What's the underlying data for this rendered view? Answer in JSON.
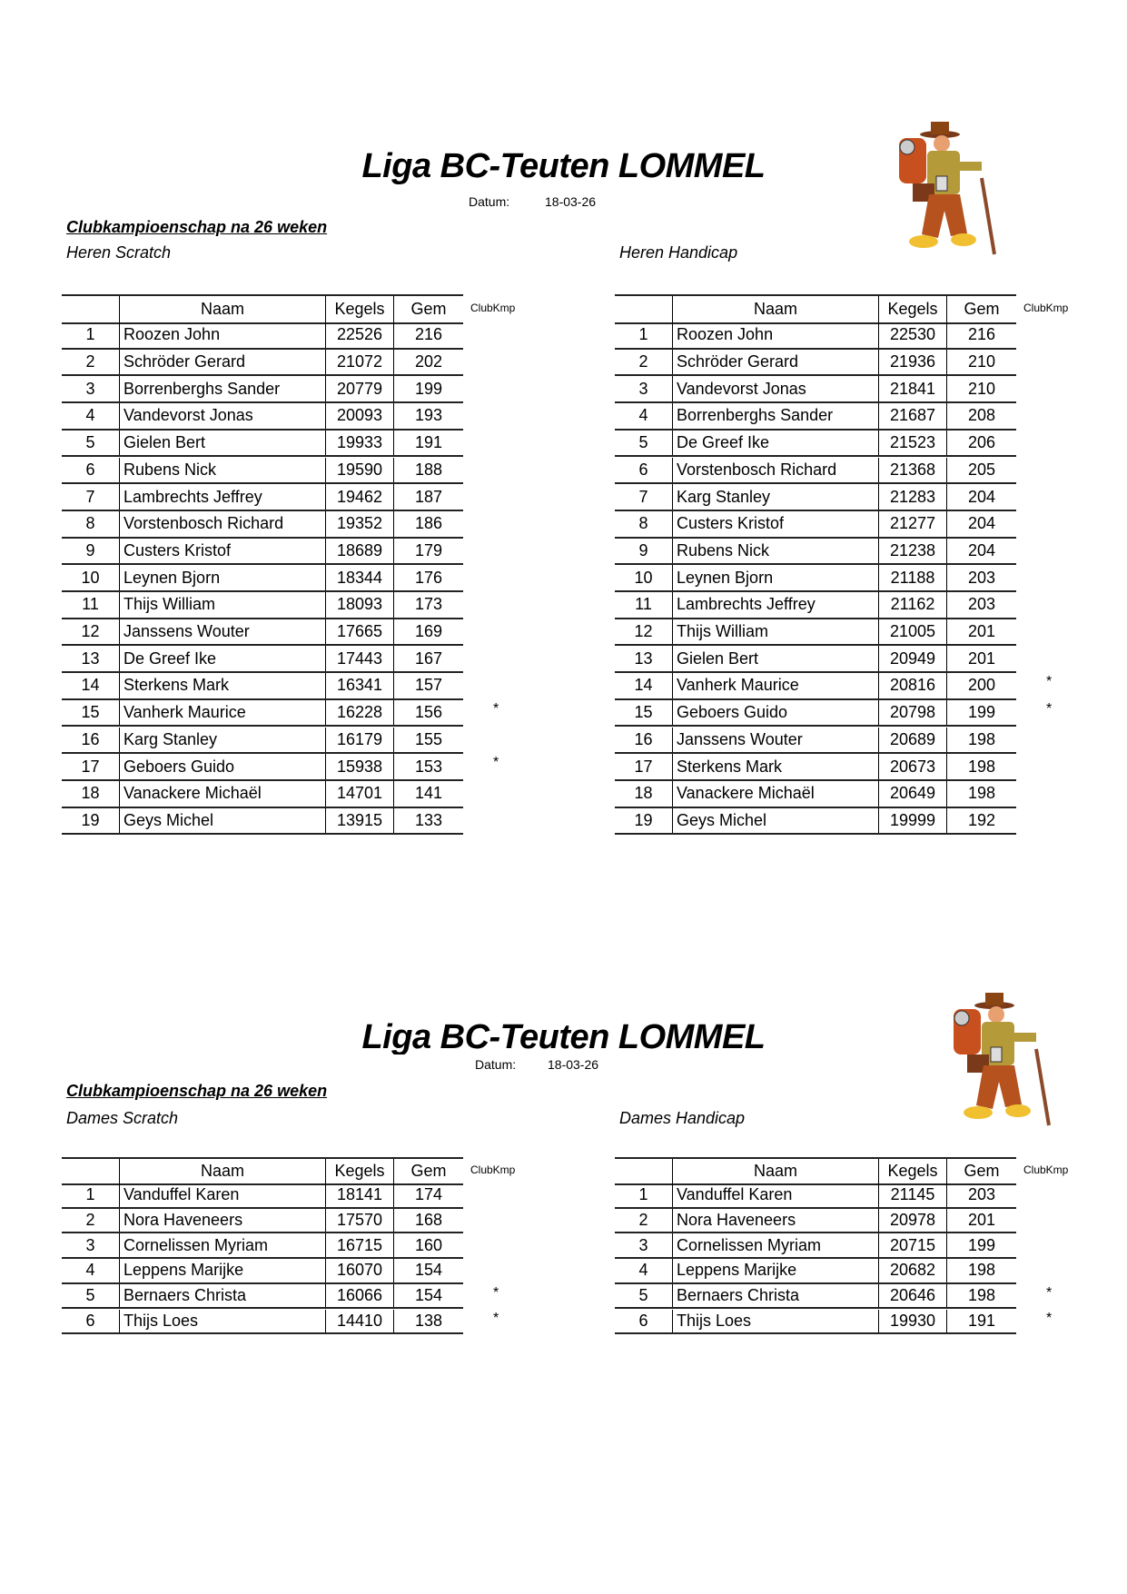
{
  "sections": [
    {
      "title": "Liga BC-Teuten LOMMEL",
      "datum_label": "Datum:",
      "datum_value": "18-03-26",
      "subtitle": "Clubkampioenschap na 26 weken",
      "columns": {
        "naam": "Naam",
        "kegels": "Kegels",
        "gem": "Gem",
        "clubkmp": "ClubKmp"
      },
      "tables": [
        {
          "label": "Heren Scratch",
          "rows": [
            [
              "1",
              "Roozen John",
              "22526",
              "216",
              ""
            ],
            [
              "2",
              "Schröder Gerard",
              "21072",
              "202",
              ""
            ],
            [
              "3",
              "Borrenberghs Sander",
              "20779",
              "199",
              ""
            ],
            [
              "4",
              "Vandevorst Jonas",
              "20093",
              "193",
              ""
            ],
            [
              "5",
              "Gielen Bert",
              "19933",
              "191",
              ""
            ],
            [
              "6",
              "Rubens Nick",
              "19590",
              "188",
              ""
            ],
            [
              "7",
              "Lambrechts Jeffrey",
              "19462",
              "187",
              ""
            ],
            [
              "8",
              "Vorstenbosch Richard",
              "19352",
              "186",
              ""
            ],
            [
              "9",
              "Custers Kristof",
              "18689",
              "179",
              ""
            ],
            [
              "10",
              "Leynen Bjorn",
              "18344",
              "176",
              ""
            ],
            [
              "11",
              "Thijs William",
              "18093",
              "173",
              ""
            ],
            [
              "12",
              "Janssens Wouter",
              "17665",
              "169",
              ""
            ],
            [
              "13",
              "De Greef Ike",
              "17443",
              "167",
              ""
            ],
            [
              "14",
              "Sterkens Mark",
              "16341",
              "157",
              ""
            ],
            [
              "15",
              "Vanherk Maurice",
              "16228",
              "156",
              "*"
            ],
            [
              "16",
              "Karg Stanley",
              "16179",
              "155",
              ""
            ],
            [
              "17",
              "Geboers Guido",
              "15938",
              "153",
              "*"
            ],
            [
              "18",
              "Vanackere Michaël",
              "14701",
              "141",
              ""
            ],
            [
              "19",
              "Geys Michel",
              "13915",
              "133",
              ""
            ]
          ]
        },
        {
          "label": "Heren Handicap",
          "rows": [
            [
              "1",
              "Roozen John",
              "22530",
              "216",
              ""
            ],
            [
              "2",
              "Schröder Gerard",
              "21936",
              "210",
              ""
            ],
            [
              "3",
              "Vandevorst Jonas",
              "21841",
              "210",
              ""
            ],
            [
              "4",
              "Borrenberghs Sander",
              "21687",
              "208",
              ""
            ],
            [
              "5",
              "De Greef Ike",
              "21523",
              "206",
              ""
            ],
            [
              "6",
              "Vorstenbosch Richard",
              "21368",
              "205",
              ""
            ],
            [
              "7",
              "Karg Stanley",
              "21283",
              "204",
              ""
            ],
            [
              "8",
              "Custers Kristof",
              "21277",
              "204",
              ""
            ],
            [
              "9",
              "Rubens Nick",
              "21238",
              "204",
              ""
            ],
            [
              "10",
              "Leynen Bjorn",
              "21188",
              "203",
              ""
            ],
            [
              "11",
              "Lambrechts Jeffrey",
              "21162",
              "203",
              ""
            ],
            [
              "12",
              "Thijs William",
              "21005",
              "201",
              ""
            ],
            [
              "13",
              "Gielen Bert",
              "20949",
              "201",
              ""
            ],
            [
              "14",
              "Vanherk Maurice",
              "20816",
              "200",
              "*"
            ],
            [
              "15",
              "Geboers Guido",
              "20798",
              "199",
              "*"
            ],
            [
              "16",
              "Janssens Wouter",
              "20689",
              "198",
              ""
            ],
            [
              "17",
              "Sterkens Mark",
              "20673",
              "198",
              ""
            ],
            [
              "18",
              "Vanackere Michaël",
              "20649",
              "198",
              ""
            ],
            [
              "19",
              "Geys Michel",
              "19999",
              "192",
              ""
            ]
          ]
        }
      ]
    },
    {
      "title": "Liga BC-Teuten LOMMEL",
      "datum_label": "Datum:",
      "datum_value": "18-03-26",
      "subtitle": "Clubkampioenschap na 26 weken",
      "columns": {
        "naam": "Naam",
        "kegels": "Kegels",
        "gem": "Gem",
        "clubkmp": "ClubKmp"
      },
      "tables": [
        {
          "label": "Dames Scratch",
          "rows": [
            [
              "1",
              "Vanduffel Karen",
              "18141",
              "174",
              ""
            ],
            [
              "2",
              "Nora Haveneers",
              "17570",
              "168",
              ""
            ],
            [
              "3",
              "Cornelissen Myriam",
              "16715",
              "160",
              ""
            ],
            [
              "4",
              "Leppens Marijke",
              "16070",
              "154",
              ""
            ],
            [
              "5",
              "Bernaers Christa",
              "16066",
              "154",
              "*"
            ],
            [
              "6",
              "Thijs Loes",
              "14410",
              "138",
              "*"
            ]
          ]
        },
        {
          "label": "Dames Handicap",
          "rows": [
            [
              "1",
              "Vanduffel Karen",
              "21145",
              "203",
              ""
            ],
            [
              "2",
              "Nora Haveneers",
              "20978",
              "201",
              ""
            ],
            [
              "3",
              "Cornelissen Myriam",
              "20715",
              "199",
              ""
            ],
            [
              "4",
              "Leppens Marijke",
              "20682",
              "198",
              ""
            ],
            [
              "5",
              "Bernaers Christa",
              "20646",
              "198",
              "*"
            ],
            [
              "6",
              "Thijs Loes",
              "19930",
              "191",
              "*"
            ]
          ]
        }
      ]
    }
  ]
}
